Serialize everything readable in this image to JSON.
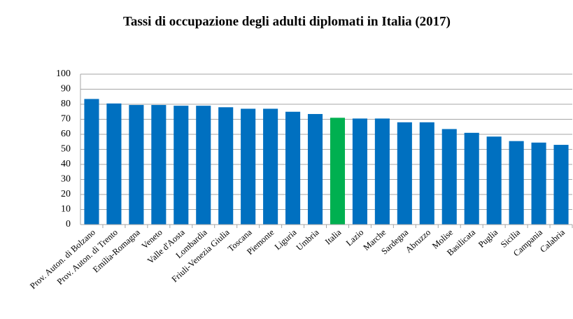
{
  "chart_data": {
    "type": "bar",
    "title": "Tassi di occupazione degli adulti diplomati in Italia (2017)",
    "categories": [
      "Prov. Auton. di Bolzano",
      "Prov. Auton. di Trento",
      "Emilia-Romagna",
      "Veneto",
      "Valle d'Aosta",
      "Lombardia",
      "Friuli-Venezia Giulia",
      "Toscana",
      "Piemonte",
      "Liguria",
      "Umbria",
      "Italia",
      "Lazio",
      "Marche",
      "Sardegna",
      "Abruzzo",
      "Molise",
      "Basilicata",
      "Puglia",
      "Sicilia",
      "Campania",
      "Calabria"
    ],
    "values": [
      83.5,
      80.5,
      79.5,
      79.5,
      79,
      79,
      78,
      77,
      77,
      75,
      73.5,
      71,
      70.5,
      70.5,
      68,
      68,
      63.5,
      61,
      58.5,
      55.5,
      54.5,
      53
    ],
    "colors": [
      "#0070c0",
      "#0070c0",
      "#0070c0",
      "#0070c0",
      "#0070c0",
      "#0070c0",
      "#0070c0",
      "#0070c0",
      "#0070c0",
      "#0070c0",
      "#0070c0",
      "#00b050",
      "#0070c0",
      "#0070c0",
      "#0070c0",
      "#0070c0",
      "#0070c0",
      "#0070c0",
      "#0070c0",
      "#0070c0",
      "#0070c0",
      "#0070c0"
    ],
    "ylim": [
      0,
      100
    ],
    "yticks": [
      0,
      10,
      20,
      30,
      40,
      50,
      60,
      70,
      80,
      90,
      100
    ],
    "grid": true
  }
}
